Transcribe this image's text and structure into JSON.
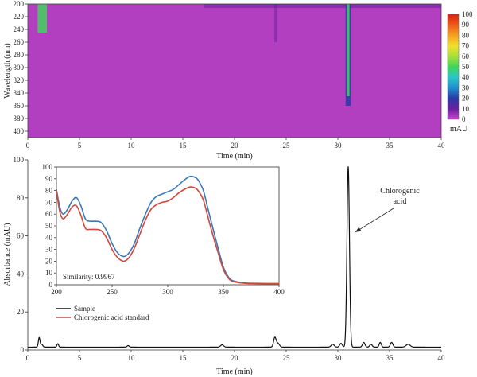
{
  "chart_data": [
    {
      "type": "heatmap",
      "xlabel": "Time (min)",
      "ylabel": "Wavelength (nm)",
      "x_ticks": [
        0,
        5,
        10,
        15,
        20,
        25,
        30,
        35,
        40
      ],
      "y_ticks": [
        200,
        220,
        240,
        260,
        280,
        300,
        320,
        340,
        360,
        380,
        400
      ],
      "xlim": [
        0,
        40
      ],
      "ylim": [
        200,
        410
      ],
      "colorbar": {
        "label": "mAU",
        "ticks": [
          100,
          90,
          80,
          70,
          60,
          50,
          40,
          30,
          20,
          10,
          0
        ],
        "colors": [
          "#cc44cc",
          "#6a1fa0",
          "#2a3aa8",
          "#1f8fd0",
          "#29c6c8",
          "#3fd65a",
          "#a8e03a",
          "#f2e02a",
          "#f5a020",
          "#ee5a18",
          "#dd1f10"
        ]
      },
      "background_color": "#b23fc0",
      "features": [
        {
          "type": "band",
          "center_min": 31.0,
          "width_min": 0.5,
          "wavelength_range": [
            200,
            360
          ],
          "level": "moderate"
        },
        {
          "type": "band",
          "center_min": 1.4,
          "width_min": 0.9,
          "wavelength_range": [
            200,
            245
          ],
          "level": "high"
        },
        {
          "type": "band",
          "center_min": 24.0,
          "width_min": 0.3,
          "wavelength_range": [
            200,
            260
          ],
          "level": "low"
        },
        {
          "type": "band",
          "center_min": 31.0,
          "width_min": 0.25,
          "wavelength_range": [
            200,
            345
          ],
          "level": "high"
        }
      ]
    },
    {
      "type": "line",
      "xlabel": "Time (min)",
      "ylabel": "Absorbance (mAU)",
      "xlim": [
        0,
        40
      ],
      "ylim": [
        0,
        100
      ],
      "x_ticks": [
        0,
        5,
        10,
        15,
        20,
        25,
        30,
        35,
        40
      ],
      "y_ticks": [
        0,
        20,
        40,
        60,
        80,
        100
      ],
      "baseline": 1.5,
      "peaks": [
        {
          "time": 1.1,
          "height": 5,
          "width": 0.08
        },
        {
          "time": 1.35,
          "height": 1.5,
          "width": 0.1
        },
        {
          "time": 2.9,
          "height": 1.8,
          "width": 0.08
        },
        {
          "time": 9.7,
          "height": 0.8,
          "width": 0.1
        },
        {
          "time": 18.8,
          "height": 1.2,
          "width": 0.15
        },
        {
          "time": 23.9,
          "height": 5,
          "width": 0.12
        },
        {
          "time": 24.2,
          "height": 2,
          "width": 0.15
        },
        {
          "time": 29.5,
          "height": 1.5,
          "width": 0.15
        },
        {
          "time": 30.3,
          "height": 2,
          "width": 0.12
        },
        {
          "time": 31.0,
          "height": 95,
          "width": 0.12
        },
        {
          "time": 32.5,
          "height": 2.5,
          "width": 0.12
        },
        {
          "time": 33.2,
          "height": 1.5,
          "width": 0.12
        },
        {
          "time": 34.1,
          "height": 2.5,
          "width": 0.1
        },
        {
          "time": 35.2,
          "height": 2.5,
          "width": 0.12
        },
        {
          "time": 36.8,
          "height": 1.5,
          "width": 0.2
        }
      ],
      "annotation": {
        "text_lines": [
          "Chlorogenic",
          "acid"
        ],
        "points_to_time": 31.0,
        "points_to_value": 62
      },
      "legend": {
        "placement": "lower-left",
        "entries": [
          {
            "name": "Sample",
            "color": "#111111"
          },
          {
            "name": "Chlorogenic acid standard",
            "color": "#d2483a"
          }
        ]
      }
    },
    {
      "type": "line",
      "title": "",
      "xlim": [
        200,
        400
      ],
      "ylim": [
        0,
        100
      ],
      "x_ticks": [
        200,
        250,
        300,
        350,
        400
      ],
      "y_ticks": [
        0,
        10,
        20,
        30,
        40,
        50,
        60,
        70,
        80,
        90,
        100
      ],
      "x": [
        200,
        203,
        206,
        210,
        214,
        218,
        222,
        226,
        230,
        235,
        240,
        245,
        250,
        255,
        260,
        263,
        266,
        270,
        275,
        280,
        285,
        290,
        295,
        300,
        305,
        310,
        315,
        320,
        325,
        328,
        332,
        336,
        340,
        345,
        350,
        355,
        360,
        370,
        380,
        390,
        400
      ],
      "series": [
        {
          "color": "#3a78b8",
          "values": [
            81,
            66,
            60,
            64,
            71,
            74,
            67,
            56,
            54,
            54,
            53,
            46,
            35,
            27,
            24,
            25,
            28,
            35,
            48,
            60,
            70,
            75,
            77,
            79,
            81,
            85,
            89,
            92,
            91,
            88,
            80,
            65,
            50,
            32,
            15,
            6,
            3,
            1.5,
            1.2,
            1.0,
            1.0
          ]
        },
        {
          "color": "#d2483a",
          "values": [
            80,
            62,
            56,
            60,
            66,
            67,
            59,
            48,
            47,
            47,
            46,
            40,
            30,
            23,
            20,
            21,
            24,
            31,
            43,
            55,
            64,
            68,
            70,
            71,
            74,
            78,
            81,
            83,
            82,
            79,
            72,
            58,
            44,
            28,
            13,
            5,
            2.5,
            1.2,
            1.0,
            1.0,
            1.0
          ]
        }
      ],
      "annotations": [
        "Similarity: 0.9967"
      ]
    }
  ]
}
